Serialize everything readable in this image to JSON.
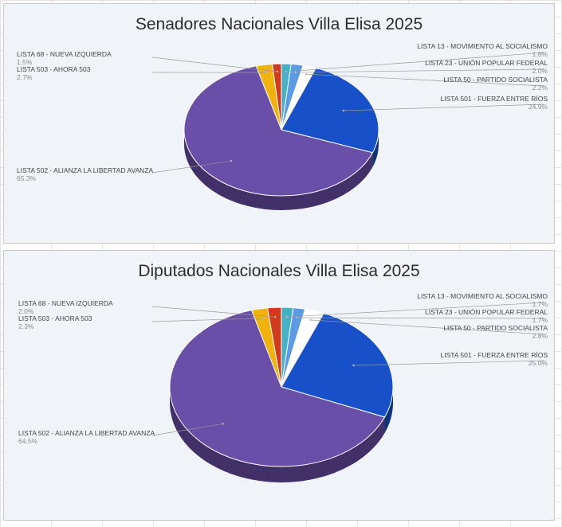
{
  "chart_data": [
    {
      "type": "pie",
      "title": "Senadores Nacionales Villa Elisa 2025",
      "slices": [
        {
          "label": "LISTA 13 - MOVIMIENTO AL SOCIALISMO",
          "value": 1.6,
          "value_text": "1.6%",
          "color": "#45b0c6"
        },
        {
          "label": "LISTA 23 - UNIÓN POPULAR FEDERAL",
          "value": 2.0,
          "value_text": "2.0%",
          "color": "#5b9be6"
        },
        {
          "label": "LISTA 50 - PARTIDO SOCIALISTA",
          "value": 2.2,
          "value_text": "2.2%",
          "color": "#ffffff"
        },
        {
          "label": "LISTA 501 - FUERZA ENTRE RÍOS",
          "value": 24.9,
          "value_text": "24.9%",
          "color": "#1750c8"
        },
        {
          "label": "LISTA 502 - ALIANZA LA LIBERTAD AVANZA",
          "value": 65.3,
          "value_text": "65.3%",
          "color": "#6a4fa8"
        },
        {
          "label": "LISTA 503 - AHORA 503",
          "value": 2.7,
          "value_text": "2.7%",
          "color": "#f2b20e"
        },
        {
          "label": "LISTA 68 - NUEVA IZQUIERDA",
          "value": 1.5,
          "value_text": "1.5%",
          "color": "#d23a1c"
        }
      ]
    },
    {
      "type": "pie",
      "title": "Diputados Nacionales Villa Elisa 2025",
      "slices": [
        {
          "label": "LISTA 13 - MOVIMIENTO AL SOCIALISMO",
          "value": 1.7,
          "value_text": "1.7%",
          "color": "#45b0c6"
        },
        {
          "label": "LISTA 23 - UNIÓN POPULAR FEDERAL",
          "value": 1.7,
          "value_text": "1.7%",
          "color": "#5b9be6"
        },
        {
          "label": "LISTA 50 - PARTIDO SOCIALISTA",
          "value": 2.8,
          "value_text": "2.8%",
          "color": "#ffffff"
        },
        {
          "label": "LISTA 501 - FUERZA ENTRE RÍOS",
          "value": 25.0,
          "value_text": "25.0%",
          "color": "#1750c8"
        },
        {
          "label": "LISTA 502 - ALIANZA LA LIBERTAD AVANZA",
          "value": 64.5,
          "value_text": "64.5%",
          "color": "#6a4fa8"
        },
        {
          "label": "LISTA 503 - AHORA 503",
          "value": 2.3,
          "value_text": "2.3%",
          "color": "#f2b20e"
        },
        {
          "label": "LISTA 68 - NUEVA IZQUIERDA",
          "value": 2.0,
          "value_text": "2.0%",
          "color": "#d23a1c"
        }
      ]
    }
  ]
}
